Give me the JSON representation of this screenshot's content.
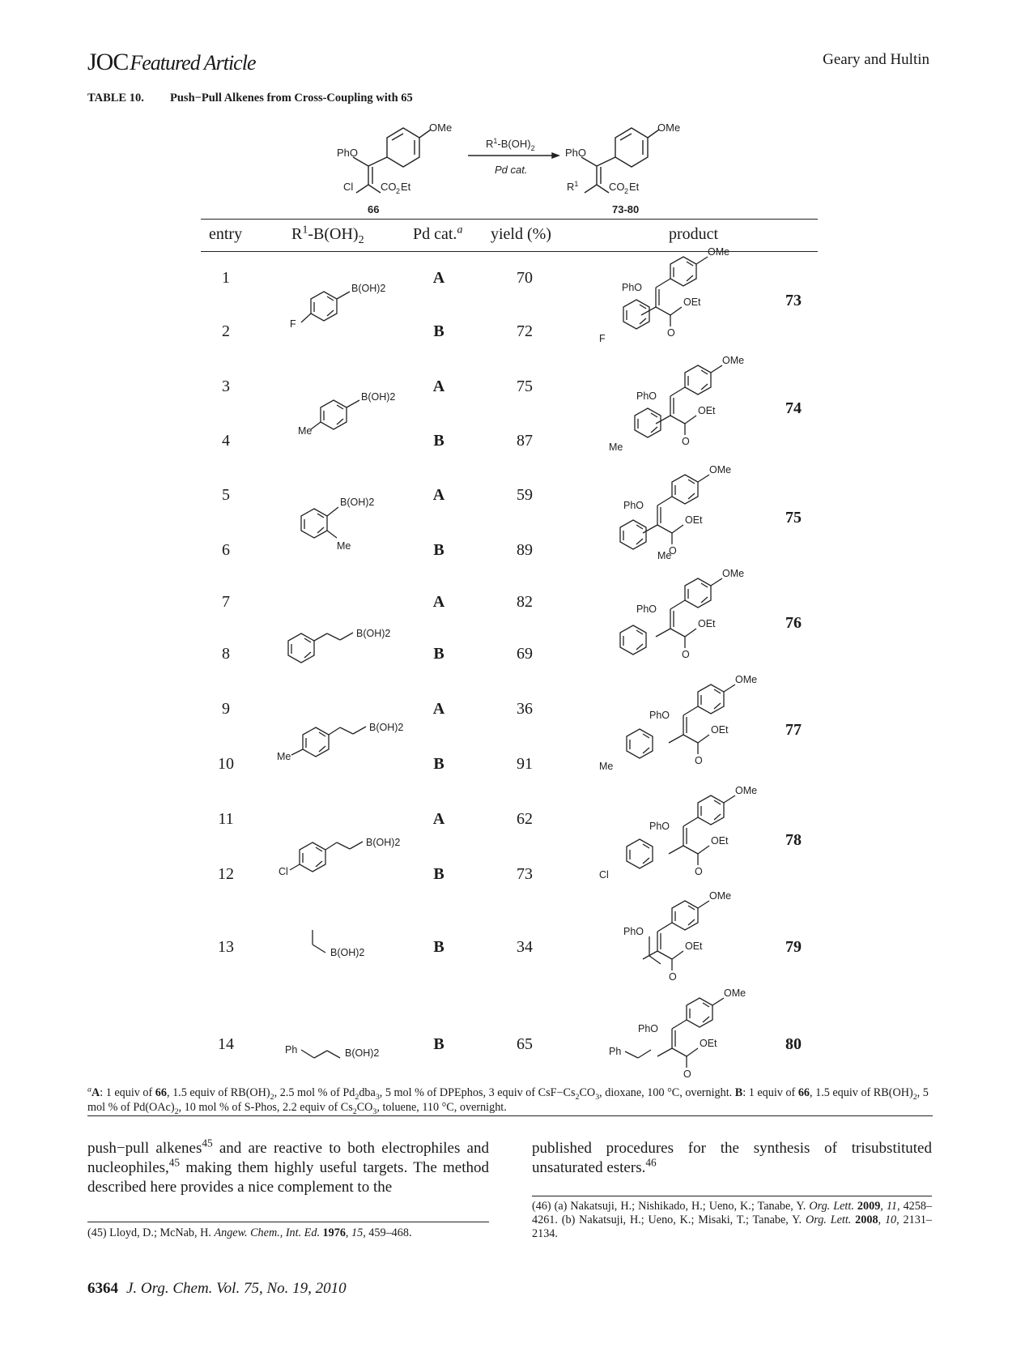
{
  "header": {
    "journal": "JOC",
    "section": "Featured Article",
    "authors": "Geary and Hultin"
  },
  "table": {
    "label": "TABLE 10.",
    "title": "Push−Pull Alkenes from Cross-Coupling with 65",
    "scheme": {
      "reagent": "R1-B(OH)2",
      "catalyst": "Pd cat.",
      "start_label": "66",
      "product_label": "73-80"
    },
    "columns": [
      "entry",
      "R1-B(OH)2",
      "Pd cat.",
      "yield (%)",
      "product"
    ],
    "rows": [
      {
        "entry": "1",
        "cat": "A",
        "yield": "70"
      },
      {
        "entry": "2",
        "cat": "B",
        "yield": "72"
      },
      {
        "entry": "3",
        "cat": "A",
        "yield": "75"
      },
      {
        "entry": "4",
        "cat": "B",
        "yield": "87"
      },
      {
        "entry": "5",
        "cat": "A",
        "yield": "59"
      },
      {
        "entry": "6",
        "cat": "B",
        "yield": "89"
      },
      {
        "entry": "7",
        "cat": "A",
        "yield": "82"
      },
      {
        "entry": "8",
        "cat": "B",
        "yield": "69"
      },
      {
        "entry": "9",
        "cat": "A",
        "yield": "36"
      },
      {
        "entry": "10",
        "cat": "B",
        "yield": "91"
      },
      {
        "entry": "11",
        "cat": "A",
        "yield": "62"
      },
      {
        "entry": "12",
        "cat": "B",
        "yield": "73"
      },
      {
        "entry": "13",
        "cat": "B",
        "yield": "34"
      },
      {
        "entry": "14",
        "cat": "B",
        "yield": "65"
      }
    ],
    "products": [
      "73",
      "74",
      "75",
      "76",
      "77",
      "78",
      "79",
      "80"
    ],
    "reagent_labels": {
      "boh2": "B(OH)2",
      "F": "F",
      "Me": "Me",
      "Cl": "Cl",
      "Ph": "Ph",
      "PhO": "PhO",
      "OMe": "OMe",
      "OEt": "OEt",
      "O": "O",
      "CO2Et": "CO2Et",
      "R1": "R1"
    }
  },
  "footnote": "A: 1 equiv of 66, 1.5 equiv of RB(OH)2, 2.5 mol % of Pd2dba3, 5 mol % of DPEphos, 3 equiv of CsF−Cs2CO3, dioxane, 100 °C, overnight. B: 1 equiv of 66, 1.5 equiv of RB(OH)2, 5 mol % of Pd(OAc)2, 10 mol % of S-Phos, 2.2 equiv of Cs2CO3, toluene, 110 °C, overnight.",
  "body": {
    "left": "push−pull alkenes45 and are reactive to both electrophiles and nucleophiles,45 making them highly useful targets. The method described here provides a nice complement to the",
    "right": "published procedures for the synthesis of trisubstituted unsaturated esters.46"
  },
  "references": {
    "ref45": "(45) Lloyd, D.; McNab, H. Angew. Chem., Int. Ed. 1976, 15, 459–468.",
    "ref46": "(46) (a) Nakatsuji, H.; Nishikado, H.; Ueno, K.; Tanabe, Y. Org. Lett. 2009, 11, 4258–4261. (b) Nakatsuji, H.; Ueno, K.; Misaki, T.; Tanabe, Y. Org. Lett. 2008, 10, 2131–2134."
  },
  "page_footer": {
    "page_number": "6364",
    "citation": "J. Org. Chem. Vol. 75, No. 19, 2010"
  }
}
